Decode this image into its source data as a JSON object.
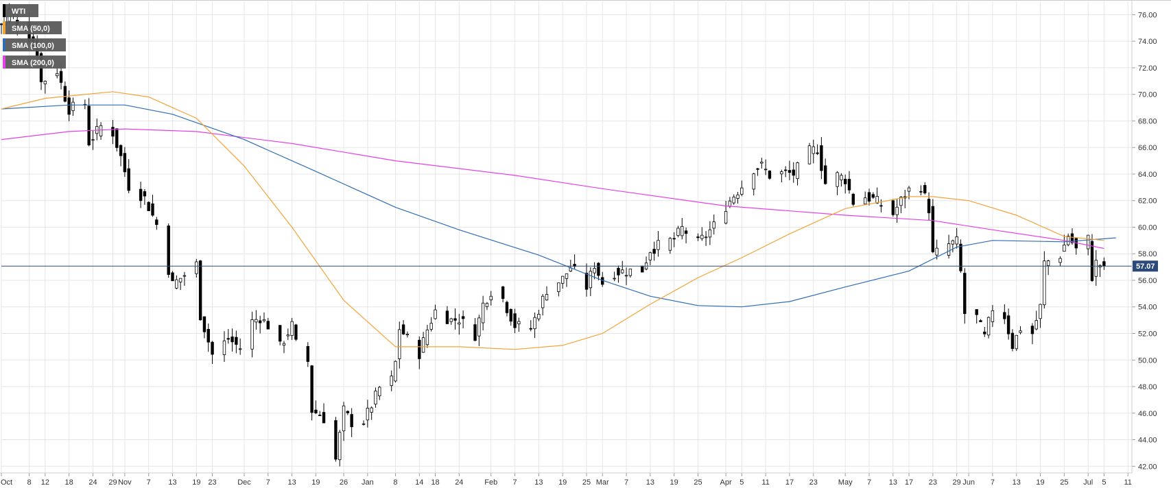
{
  "chart_data": {
    "type": "candlestick",
    "symbol": "WTI",
    "colors": {
      "up_candle": "#ffffff",
      "down_candle": "#000000",
      "sma50": "#f4a338",
      "sma100": "#2e6db4",
      "sma200": "#e63ee8",
      "last_price_line": "#2b4a7a",
      "grid": "#e6e6e6",
      "legend_bg": "#5a5a5a"
    },
    "legend": [
      {
        "label": "WTI",
        "color": "#000000"
      },
      {
        "label": "SMA (50,0)",
        "color": "#f4a338"
      },
      {
        "label": "SMA (100,0)",
        "color": "#2e6db4"
      },
      {
        "label": "SMA (200,0)",
        "color": "#e63ee8"
      }
    ],
    "y_axis": {
      "side": "right",
      "ylim": [
        41.5,
        77
      ],
      "ticks": [
        "42.00",
        "44.00",
        "46.00",
        "48.00",
        "50.00",
        "52.00",
        "54.00",
        "56.00",
        "58.00",
        "60.00",
        "62.00",
        "64.00",
        "66.00",
        "68.00",
        "70.00",
        "72.00",
        "74.00",
        "76.00"
      ]
    },
    "x_axis": {
      "date_start": "2018-10-01",
      "date_end": "2019-07-12",
      "ticks": [
        {
          "date": "2018-10-01",
          "label": "Oct"
        },
        {
          "date": "2018-10-08",
          "label": "8"
        },
        {
          "date": "2018-10-12",
          "label": "12"
        },
        {
          "date": "2018-10-18",
          "label": "18"
        },
        {
          "date": "2018-10-24",
          "label": "24"
        },
        {
          "date": "2018-10-29",
          "label": "29"
        },
        {
          "date": "2018-11-01",
          "label": "Nov"
        },
        {
          "date": "2018-11-07",
          "label": "7"
        },
        {
          "date": "2018-11-13",
          "label": "13"
        },
        {
          "date": "2018-11-19",
          "label": "19"
        },
        {
          "date": "2018-11-23",
          "label": "23"
        },
        {
          "date": "2018-12-01",
          "label": "Dec"
        },
        {
          "date": "2018-12-07",
          "label": "7"
        },
        {
          "date": "2018-12-13",
          "label": "13"
        },
        {
          "date": "2018-12-19",
          "label": "19"
        },
        {
          "date": "2018-12-26",
          "label": "26"
        },
        {
          "date": "2019-01-01",
          "label": "Jan"
        },
        {
          "date": "2019-01-08",
          "label": "8"
        },
        {
          "date": "2019-01-14",
          "label": "14"
        },
        {
          "date": "2019-01-18",
          "label": "18"
        },
        {
          "date": "2019-01-24",
          "label": "24"
        },
        {
          "date": "2019-02-01",
          "label": "Feb"
        },
        {
          "date": "2019-02-07",
          "label": "7"
        },
        {
          "date": "2019-02-13",
          "label": "13"
        },
        {
          "date": "2019-02-19",
          "label": "19"
        },
        {
          "date": "2019-02-25",
          "label": "25"
        },
        {
          "date": "2019-03-01",
          "label": "Mar"
        },
        {
          "date": "2019-03-07",
          "label": "7"
        },
        {
          "date": "2019-03-13",
          "label": "13"
        },
        {
          "date": "2019-03-19",
          "label": "19"
        },
        {
          "date": "2019-03-25",
          "label": "25"
        },
        {
          "date": "2019-04-01",
          "label": "Apr"
        },
        {
          "date": "2019-04-05",
          "label": "5"
        },
        {
          "date": "2019-04-11",
          "label": "11"
        },
        {
          "date": "2019-04-17",
          "label": "17"
        },
        {
          "date": "2019-04-23",
          "label": "23"
        },
        {
          "date": "2019-05-01",
          "label": "May"
        },
        {
          "date": "2019-05-07",
          "label": "7"
        },
        {
          "date": "2019-05-13",
          "label": "13"
        },
        {
          "date": "2019-05-17",
          "label": "17"
        },
        {
          "date": "2019-05-23",
          "label": "23"
        },
        {
          "date": "2019-05-29",
          "label": "29"
        },
        {
          "date": "2019-06-01",
          "label": "Jun"
        },
        {
          "date": "2019-06-07",
          "label": "7"
        },
        {
          "date": "2019-06-13",
          "label": "13"
        },
        {
          "date": "2019-06-19",
          "label": "19"
        },
        {
          "date": "2019-06-25",
          "label": "25"
        },
        {
          "date": "2019-07-01",
          "label": "Jul"
        },
        {
          "date": "2019-07-05",
          "label": "5"
        },
        {
          "date": "2019-07-11",
          "label": "11"
        }
      ]
    },
    "last_price": 57.07,
    "last_price_label": "57.07",
    "price_path": [
      [
        "2018-10-01",
        75.3
      ],
      [
        "2018-10-03",
        76.3
      ],
      [
        "2018-10-08",
        74.3
      ],
      [
        "2018-10-10",
        73.2
      ],
      [
        "2018-10-11",
        70.9
      ],
      [
        "2018-10-15",
        71.8
      ],
      [
        "2018-10-17",
        69.8
      ],
      [
        "2018-10-18",
        68.9
      ],
      [
        "2018-10-22",
        69.3
      ],
      [
        "2018-10-23",
        66.4
      ],
      [
        "2018-10-26",
        67.6
      ],
      [
        "2018-10-29",
        67.1
      ],
      [
        "2018-10-31",
        65.3
      ],
      [
        "2018-11-02",
        63.1
      ],
      [
        "2018-11-06",
        62.2
      ],
      [
        "2018-11-09",
        60.2
      ],
      [
        "2018-11-13",
        55.7
      ],
      [
        "2018-11-16",
        56.4
      ],
      [
        "2018-11-19",
        57.2
      ],
      [
        "2018-11-20",
        53.4
      ],
      [
        "2018-11-23",
        50.4
      ],
      [
        "2018-11-27",
        51.6
      ],
      [
        "2018-11-30",
        50.9
      ],
      [
        "2018-12-03",
        52.9
      ],
      [
        "2018-12-05",
        53.2
      ],
      [
        "2018-12-07",
        52.6
      ],
      [
        "2018-12-10",
        51.0
      ],
      [
        "2018-12-13",
        52.6
      ],
      [
        "2018-12-14",
        51.2
      ],
      [
        "2018-12-17",
        49.9
      ],
      [
        "2018-12-18",
        46.2
      ],
      [
        "2018-12-20",
        45.9
      ],
      [
        "2018-12-21",
        45.6
      ],
      [
        "2018-12-24",
        42.5
      ],
      [
        "2018-12-26",
        46.2
      ],
      [
        "2018-12-28",
        45.3
      ],
      [
        "2018-12-31",
        45.4
      ],
      [
        "2019-01-02",
        46.6
      ],
      [
        "2019-01-04",
        47.9
      ],
      [
        "2019-01-07",
        48.5
      ],
      [
        "2019-01-08",
        49.8
      ],
      [
        "2019-01-09",
        52.4
      ],
      [
        "2019-01-11",
        51.6
      ],
      [
        "2019-01-14",
        50.5
      ],
      [
        "2019-01-16",
        52.3
      ],
      [
        "2019-01-18",
        53.7
      ],
      [
        "2019-01-22",
        53.0
      ],
      [
        "2019-01-24",
        53.1
      ],
      [
        "2019-01-28",
        51.9
      ],
      [
        "2019-01-30",
        54.2
      ],
      [
        "2019-02-01",
        55.2
      ],
      [
        "2019-02-04",
        54.6
      ],
      [
        "2019-02-07",
        52.6
      ],
      [
        "2019-02-11",
        52.4
      ],
      [
        "2019-02-13",
        53.8
      ],
      [
        "2019-02-15",
        55.3
      ],
      [
        "2019-02-19",
        56.1
      ],
      [
        "2019-02-21",
        57.0
      ],
      [
        "2019-02-25",
        55.5
      ],
      [
        "2019-02-27",
        57.2
      ],
      [
        "2019-03-01",
        55.8
      ],
      [
        "2019-03-04",
        56.6
      ],
      [
        "2019-03-07",
        56.7
      ],
      [
        "2019-03-11",
        56.8
      ],
      [
        "2019-03-13",
        58.3
      ],
      [
        "2019-03-15",
        58.6
      ],
      [
        "2019-03-19",
        59.1
      ],
      [
        "2019-03-21",
        59.9
      ],
      [
        "2019-03-25",
        58.8
      ],
      [
        "2019-03-27",
        59.4
      ],
      [
        "2019-03-29",
        60.1
      ],
      [
        "2019-04-01",
        61.6
      ],
      [
        "2019-04-03",
        62.4
      ],
      [
        "2019-04-05",
        63.1
      ],
      [
        "2019-04-08",
        64.4
      ],
      [
        "2019-04-10",
        64.6
      ],
      [
        "2019-04-12",
        63.9
      ],
      [
        "2019-04-16",
        64.1
      ],
      [
        "2019-04-18",
        64.0
      ],
      [
        "2019-04-22",
        65.7
      ],
      [
        "2019-04-24",
        65.9
      ],
      [
        "2019-04-26",
        63.3
      ],
      [
        "2019-04-29",
        63.9
      ],
      [
        "2019-05-01",
        63.6
      ],
      [
        "2019-05-03",
        61.9
      ],
      [
        "2019-05-06",
        62.3
      ],
      [
        "2019-05-08",
        62.1
      ],
      [
        "2019-05-10",
        61.7
      ],
      [
        "2019-05-13",
        61.0
      ],
      [
        "2019-05-15",
        62.0
      ],
      [
        "2019-05-17",
        62.8
      ],
      [
        "2019-05-20",
        63.1
      ],
      [
        "2019-05-22",
        61.4
      ],
      [
        "2019-05-23",
        57.9
      ],
      [
        "2019-05-27",
        58.7
      ],
      [
        "2019-05-29",
        58.9
      ],
      [
        "2019-05-30",
        56.6
      ],
      [
        "2019-05-31",
        53.5
      ],
      [
        "2019-06-03",
        53.2
      ],
      [
        "2019-06-05",
        51.7
      ],
      [
        "2019-06-07",
        53.9
      ],
      [
        "2019-06-10",
        53.3
      ],
      [
        "2019-06-12",
        51.1
      ],
      [
        "2019-06-14",
        52.4
      ],
      [
        "2019-06-17",
        52.0
      ],
      [
        "2019-06-19",
        54.0
      ],
      [
        "2019-06-20",
        57.3
      ],
      [
        "2019-06-24",
        57.9
      ],
      [
        "2019-06-26",
        59.4
      ],
      [
        "2019-06-28",
        58.3
      ],
      [
        "2019-07-01",
        59.1
      ],
      [
        "2019-07-02",
        56.3
      ],
      [
        "2019-07-03",
        57.3
      ],
      [
        "2019-07-05",
        57.07
      ]
    ],
    "sma50": [
      [
        "2018-10-01",
        68.9
      ],
      [
        "2018-10-12",
        69.7
      ],
      [
        "2018-10-29",
        70.2
      ],
      [
        "2018-11-07",
        69.8
      ],
      [
        "2018-11-19",
        68.2
      ],
      [
        "2018-12-01",
        64.6
      ],
      [
        "2018-12-13",
        60.0
      ],
      [
        "2018-12-26",
        54.5
      ],
      [
        "2019-01-08",
        51.0
      ],
      [
        "2019-01-24",
        51.0
      ],
      [
        "2019-02-07",
        50.8
      ],
      [
        "2019-02-19",
        51.1
      ],
      [
        "2019-03-01",
        52.0
      ],
      [
        "2019-03-13",
        54.2
      ],
      [
        "2019-03-25",
        56.2
      ],
      [
        "2019-04-05",
        57.7
      ],
      [
        "2019-04-17",
        59.5
      ],
      [
        "2019-05-01",
        61.4
      ],
      [
        "2019-05-17",
        62.3
      ],
      [
        "2019-05-23",
        62.3
      ],
      [
        "2019-06-01",
        62.0
      ],
      [
        "2019-06-13",
        60.9
      ],
      [
        "2019-06-25",
        59.3
      ],
      [
        "2019-07-05",
        59.0
      ]
    ],
    "sma100": [
      [
        "2018-10-01",
        68.9
      ],
      [
        "2018-10-18",
        69.2
      ],
      [
        "2018-11-01",
        69.2
      ],
      [
        "2018-11-13",
        68.5
      ],
      [
        "2018-12-01",
        66.6
      ],
      [
        "2018-12-19",
        64.2
      ],
      [
        "2019-01-08",
        61.5
      ],
      [
        "2019-01-24",
        59.8
      ],
      [
        "2019-02-13",
        57.9
      ],
      [
        "2019-03-01",
        56.0
      ],
      [
        "2019-03-13",
        54.8
      ],
      [
        "2019-03-25",
        54.1
      ],
      [
        "2019-04-05",
        54.0
      ],
      [
        "2019-04-17",
        54.4
      ],
      [
        "2019-05-01",
        55.5
      ],
      [
        "2019-05-17",
        56.7
      ],
      [
        "2019-05-29",
        58.5
      ],
      [
        "2019-06-07",
        59.0
      ],
      [
        "2019-06-25",
        58.9
      ],
      [
        "2019-07-08",
        59.2
      ]
    ],
    "sma200": [
      [
        "2018-10-01",
        66.6
      ],
      [
        "2018-10-18",
        67.2
      ],
      [
        "2018-11-01",
        67.4
      ],
      [
        "2018-11-19",
        67.2
      ],
      [
        "2018-12-13",
        66.3
      ],
      [
        "2019-01-08",
        65.0
      ],
      [
        "2019-02-07",
        63.9
      ],
      [
        "2019-03-01",
        62.9
      ],
      [
        "2019-04-01",
        61.6
      ],
      [
        "2019-05-01",
        60.9
      ],
      [
        "2019-05-23",
        60.5
      ],
      [
        "2019-06-07",
        59.8
      ],
      [
        "2019-06-25",
        59.0
      ],
      [
        "2019-07-05",
        58.4
      ]
    ]
  }
}
